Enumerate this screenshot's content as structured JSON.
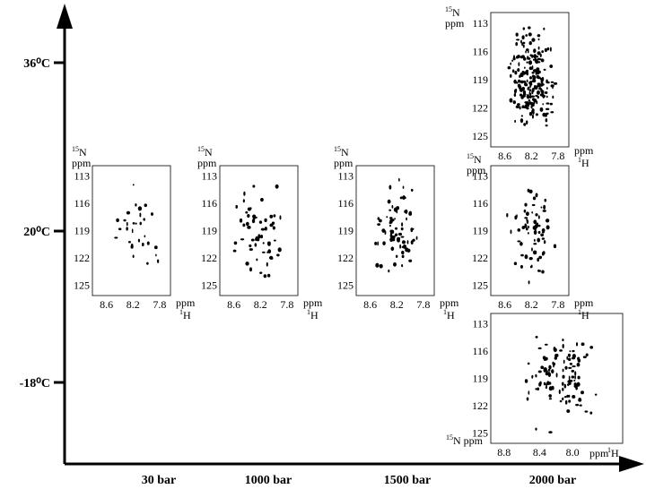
{
  "y_axis": {
    "labels": [
      "36⁰C",
      "20⁰C",
      "-18⁰C"
    ]
  },
  "x_axis": {
    "labels": [
      "30 bar",
      "1000 bar",
      "1500 bar",
      "2000 bar"
    ]
  },
  "panels": [
    {
      "n_label": {
        "isotope": "15",
        "nucleus": "N",
        "unit": "ppm"
      },
      "y_ticks": [
        "113",
        "116",
        "119",
        "122",
        "125"
      ],
      "x_ticks": [
        "8.6",
        "8.2",
        "7.8"
      ],
      "h_label": {
        "unit": "ppm",
        "isotope": "1",
        "nucleus": "H"
      }
    },
    {
      "n_label": {
        "isotope": "15",
        "nucleus": "N",
        "unit": "ppm"
      },
      "y_ticks": [
        "113",
        "116",
        "119",
        "122",
        "125"
      ],
      "x_ticks": [
        "8.6",
        "8.2",
        "7.8"
      ],
      "h_label": {
        "unit": "ppm",
        "isotope": "1",
        "nucleus": "H"
      }
    },
    {
      "n_label": {
        "isotope": "15",
        "nucleus": "N",
        "unit": "ppm"
      },
      "y_ticks": [
        "113",
        "116",
        "119",
        "122",
        "125"
      ],
      "x_ticks": [
        "8.6",
        "8.2",
        "7.8"
      ],
      "h_label": {
        "unit": "ppm",
        "isotope": "1",
        "nucleus": "H"
      }
    },
    {
      "n_label": {
        "isotope": "15",
        "nucleus": "N",
        "unit": "ppm"
      },
      "y_ticks": [
        "113",
        "116",
        "119",
        "122",
        "125"
      ],
      "x_ticks": [
        "8.6",
        "8.2",
        "7.8"
      ],
      "h_label": {
        "unit": "ppm",
        "isotope": "1",
        "nucleus": "H"
      }
    },
    {
      "n_label": {
        "isotope": "15",
        "nucleus": "N",
        "unit": "ppm"
      },
      "y_ticks": [
        "113",
        "116",
        "119",
        "122",
        "125"
      ],
      "x_ticks": [
        "8.6",
        "8.2",
        "7.8"
      ],
      "h_label": {
        "unit": "ppm",
        "isotope": "1",
        "nucleus": "H"
      }
    },
    {
      "n_label": {
        "isotope": "15",
        "nucleus": "N",
        "unit": "ppm"
      },
      "y_ticks": [
        "113",
        "116",
        "119",
        "122",
        "125"
      ],
      "x_ticks": [
        "8.8",
        "8.4",
        "8.0"
      ],
      "h_label": {
        "unit": "ppm",
        "isotope": "1",
        "nucleus": "H"
      }
    }
  ]
}
